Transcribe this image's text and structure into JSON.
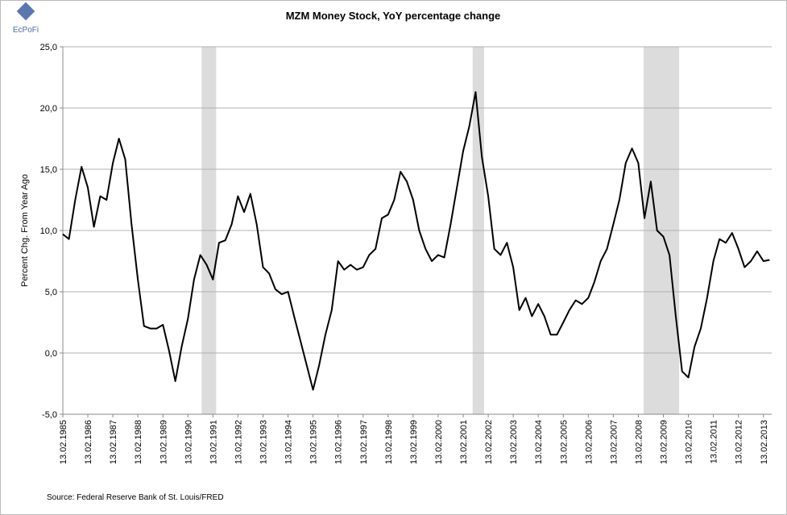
{
  "logo": "EcPoFi",
  "chart_data": {
    "type": "line",
    "title": "MZM Money Stock, YoY percentage change",
    "y_label": "Percent Chg. From Year Ago",
    "source": "Source: Federal Reserve Bank of St. Louis/FRED",
    "xlim": [
      "1985-02-13",
      "2013-06-13"
    ],
    "ylim": [
      -5,
      25
    ],
    "yticks": [
      {
        "value": -5,
        "label": "-5,0"
      },
      {
        "value": 0,
        "label": "0,0"
      },
      {
        "value": 5,
        "label": "5,0"
      },
      {
        "value": 10,
        "label": "10,0"
      },
      {
        "value": 15,
        "label": "15,0"
      },
      {
        "value": 20,
        "label": "20,0"
      },
      {
        "value": 25,
        "label": "25,0"
      }
    ],
    "xticks": [
      {
        "value": "1985-02-13",
        "label": "13.02.1985"
      },
      {
        "value": "1986-02-13",
        "label": "13.02.1986"
      },
      {
        "value": "1987-02-13",
        "label": "13.02.1987"
      },
      {
        "value": "1988-02-13",
        "label": "13.02.1988"
      },
      {
        "value": "1989-02-13",
        "label": "13.02.1989"
      },
      {
        "value": "1990-02-13",
        "label": "13.02.1990"
      },
      {
        "value": "1991-02-13",
        "label": "13.02.1991"
      },
      {
        "value": "1992-02-13",
        "label": "13.02.1992"
      },
      {
        "value": "1993-02-13",
        "label": "13.02.1993"
      },
      {
        "value": "1994-02-13",
        "label": "13.02.1994"
      },
      {
        "value": "1995-02-13",
        "label": "13.02.1995"
      },
      {
        "value": "1996-02-13",
        "label": "13.02.1996"
      },
      {
        "value": "1997-02-13",
        "label": "13.02.1997"
      },
      {
        "value": "1998-02-13",
        "label": "13.02.1998"
      },
      {
        "value": "1999-02-13",
        "label": "13.02.1999"
      },
      {
        "value": "2000-02-13",
        "label": "13.02.2000"
      },
      {
        "value": "2001-02-13",
        "label": "13.02.2001"
      },
      {
        "value": "2002-02-13",
        "label": "13.02.2002"
      },
      {
        "value": "2003-02-13",
        "label": "13.02.2003"
      },
      {
        "value": "2004-02-13",
        "label": "13.02.2004"
      },
      {
        "value": "2005-02-13",
        "label": "13.02.2005"
      },
      {
        "value": "2006-02-13",
        "label": "13.02.2006"
      },
      {
        "value": "2007-02-13",
        "label": "13.02.2007"
      },
      {
        "value": "2008-02-13",
        "label": "13.02.2008"
      },
      {
        "value": "2009-02-13",
        "label": "13.02.2009"
      },
      {
        "value": "2010-02-13",
        "label": "13.02.2010"
      },
      {
        "value": "2011-02-13",
        "label": "13.02.2011"
      },
      {
        "value": "2012-02-13",
        "label": "13.02.2012"
      },
      {
        "value": "2013-02-13",
        "label": "13.02.2013"
      }
    ],
    "grid": true,
    "shading_color": "#dcdcdc",
    "shading": [
      {
        "start": "1990-09-01",
        "end": "1991-04-01"
      },
      {
        "start": "2001-07-01",
        "end": "2001-12-15"
      },
      {
        "start": "2008-05-01",
        "end": "2009-10-01"
      }
    ],
    "x": [
      "1985-02-13",
      "1985-05-13",
      "1985-08-13",
      "1985-11-13",
      "1986-02-13",
      "1986-05-13",
      "1986-08-13",
      "1986-11-13",
      "1987-02-13",
      "1987-05-13",
      "1987-08-13",
      "1987-11-13",
      "1988-02-13",
      "1988-05-13",
      "1988-08-13",
      "1988-11-13",
      "1989-02-13",
      "1989-05-13",
      "1989-08-13",
      "1989-11-13",
      "1990-02-13",
      "1990-05-13",
      "1990-08-13",
      "1990-11-13",
      "1991-02-13",
      "1991-05-13",
      "1991-08-13",
      "1991-11-13",
      "1992-02-13",
      "1992-05-13",
      "1992-08-13",
      "1992-11-13",
      "1993-02-13",
      "1993-05-13",
      "1993-08-13",
      "1993-11-13",
      "1994-02-13",
      "1994-05-13",
      "1994-08-13",
      "1994-11-13",
      "1995-02-13",
      "1995-05-13",
      "1995-08-13",
      "1995-11-13",
      "1996-02-13",
      "1996-05-13",
      "1996-08-13",
      "1996-11-13",
      "1997-02-13",
      "1997-05-13",
      "1997-08-13",
      "1997-11-13",
      "1998-02-13",
      "1998-05-13",
      "1998-08-13",
      "1998-11-13",
      "1999-02-13",
      "1999-05-13",
      "1999-08-13",
      "1999-11-13",
      "2000-02-13",
      "2000-05-13",
      "2000-08-13",
      "2000-11-13",
      "2001-02-13",
      "2001-05-13",
      "2001-08-13",
      "2001-11-13",
      "2002-02-13",
      "2002-05-13",
      "2002-08-13",
      "2002-11-13",
      "2003-02-13",
      "2003-05-13",
      "2003-08-13",
      "2003-11-13",
      "2004-02-13",
      "2004-05-13",
      "2004-08-13",
      "2004-11-13",
      "2005-02-13",
      "2005-05-13",
      "2005-08-13",
      "2005-11-13",
      "2006-02-13",
      "2006-05-13",
      "2006-08-13",
      "2006-11-13",
      "2007-02-13",
      "2007-05-13",
      "2007-08-13",
      "2007-11-13",
      "2008-02-13",
      "2008-05-13",
      "2008-08-13",
      "2008-11-13",
      "2009-02-13",
      "2009-05-13",
      "2009-08-13",
      "2009-11-13",
      "2010-02-13",
      "2010-05-13",
      "2010-08-13",
      "2010-11-13",
      "2011-02-13",
      "2011-05-13",
      "2011-08-13",
      "2011-11-13",
      "2012-02-13",
      "2012-05-13",
      "2012-08-13",
      "2012-11-13",
      "2013-02-13",
      "2013-05-13"
    ],
    "series": [
      {
        "color": "#000000",
        "values": [
          9.7,
          9.3,
          12.5,
          15.2,
          13.5,
          10.3,
          12.8,
          12.5,
          15.5,
          17.5,
          15.8,
          10.5,
          6,
          2.2,
          2.0,
          2.0,
          2.3,
          0.2,
          -2.3,
          0.5,
          2.8,
          6,
          8,
          7.2,
          6.0,
          9.0,
          9.2,
          10.5,
          12.8,
          11.5,
          13,
          10.5,
          7,
          6.5,
          5.2,
          4.8,
          5.0,
          3.0,
          1.0,
          -1.0,
          -3.0,
          -1.0,
          1.5,
          3.5,
          7.5,
          6.8,
          7.2,
          6.8,
          7.0,
          8.0,
          8.5,
          11.0,
          11.3,
          12.5,
          14.8,
          14.0,
          12.5,
          10.0,
          8.5,
          7.5,
          8.0,
          7.8,
          10.5,
          13.5,
          16.5,
          18.5,
          21.3,
          16,
          12.8,
          8.5,
          8.0,
          9.0,
          7.0,
          3.5,
          4.5,
          3.0,
          4.0,
          3.0,
          1.5,
          1.5,
          2.5,
          3.5,
          4.3,
          4.0,
          4.5,
          5.8,
          7.5,
          8.5,
          10.5,
          12.5,
          15.5,
          16.7,
          15.5,
          11,
          14,
          10,
          9.5,
          8.0,
          3,
          -1.5,
          -2.0,
          0.5,
          2.0,
          4.5,
          7.5,
          9.3,
          9.0,
          9.8,
          8.5,
          7.0,
          7.5,
          8.3,
          7.5,
          7.6
        ]
      }
    ]
  }
}
